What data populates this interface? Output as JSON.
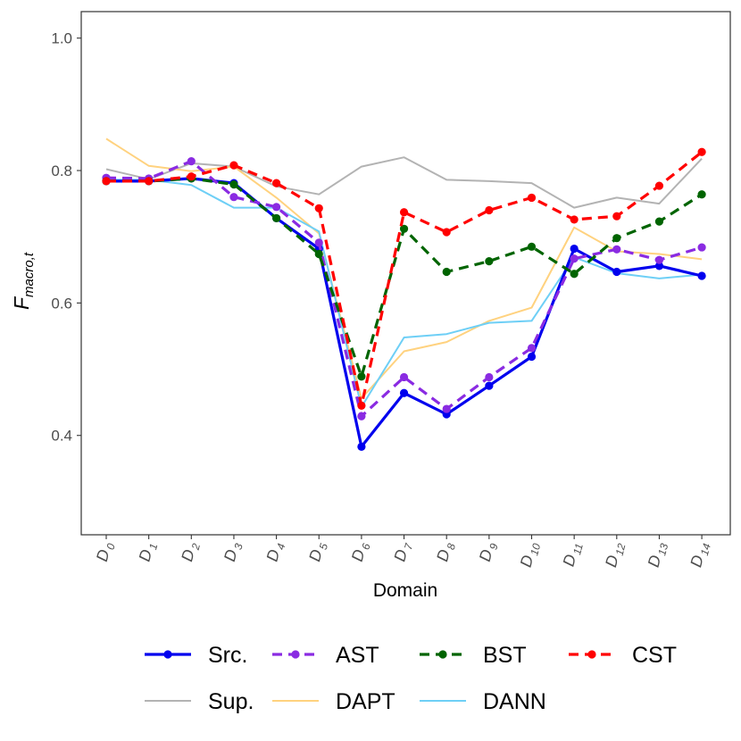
{
  "chart_data": {
    "type": "line",
    "xlabel": "Domain",
    "ylabel_main": "F",
    "ylabel_sub": "macro,t",
    "ylim": [
      0.25,
      1.04
    ],
    "yticks": [
      0.4,
      0.6,
      0.8,
      1.0
    ],
    "ytick_labels": [
      "0.4",
      "0.6",
      "0.8",
      "1.0"
    ],
    "categories": [
      {
        "main": "D",
        "sub": "0"
      },
      {
        "main": "D",
        "sub": "1"
      },
      {
        "main": "D",
        "sub": "2"
      },
      {
        "main": "D",
        "sub": "3"
      },
      {
        "main": "D",
        "sub": "4"
      },
      {
        "main": "D",
        "sub": "5"
      },
      {
        "main": "D",
        "sub": "6"
      },
      {
        "main": "D",
        "sub": "7"
      },
      {
        "main": "D",
        "sub": "8"
      },
      {
        "main": "D",
        "sub": "9"
      },
      {
        "main": "D",
        "sub": "10"
      },
      {
        "main": "D",
        "sub": "11"
      },
      {
        "main": "D",
        "sub": "12"
      },
      {
        "main": "D",
        "sub": "13"
      },
      {
        "main": "D",
        "sub": "14"
      }
    ],
    "series": [
      {
        "name": "Sup.",
        "color": "#b3b3b3",
        "dashed": false,
        "markers": false,
        "thick": false,
        "values": [
          0.802,
          0.787,
          0.811,
          0.806,
          0.776,
          0.764,
          0.806,
          0.82,
          0.786,
          0.784,
          0.781,
          0.744,
          0.759,
          0.75,
          0.818
        ]
      },
      {
        "name": "DAPT",
        "color": "#ffd27f",
        "dashed": false,
        "markers": false,
        "thick": false,
        "values": [
          0.848,
          0.807,
          0.799,
          0.806,
          0.759,
          0.705,
          0.456,
          0.527,
          0.541,
          0.573,
          0.593,
          0.714,
          0.678,
          0.674,
          0.666
        ]
      },
      {
        "name": "DANN",
        "color": "#6ecff6",
        "dashed": false,
        "markers": false,
        "thick": false,
        "values": [
          0.786,
          0.786,
          0.778,
          0.744,
          0.744,
          0.708,
          0.443,
          0.548,
          0.553,
          0.57,
          0.573,
          0.669,
          0.645,
          0.637,
          0.643
        ]
      },
      {
        "name": "Src.",
        "color": "#0000ee",
        "dashed": false,
        "markers": true,
        "thick": true,
        "values": [
          0.784,
          0.784,
          0.788,
          0.781,
          0.728,
          0.682,
          0.383,
          0.464,
          0.432,
          0.475,
          0.519,
          0.682,
          0.647,
          0.656,
          0.641
        ]
      },
      {
        "name": "AST",
        "color": "#8a2be2",
        "dashed": true,
        "markers": true,
        "thick": true,
        "values": [
          0.789,
          0.788,
          0.814,
          0.76,
          0.745,
          0.691,
          0.429,
          0.488,
          0.44,
          0.488,
          0.532,
          0.667,
          0.681,
          0.665,
          0.684
        ]
      },
      {
        "name": "BST",
        "color": "#006400",
        "dashed": true,
        "markers": true,
        "thick": true,
        "values": [
          0.784,
          0.784,
          0.788,
          0.779,
          0.728,
          0.674,
          0.489,
          0.712,
          0.647,
          0.663,
          0.685,
          0.644,
          0.698,
          0.723,
          0.764
        ]
      },
      {
        "name": "CST",
        "color": "#ff0000",
        "dashed": true,
        "markers": true,
        "thick": true,
        "values": [
          0.784,
          0.784,
          0.791,
          0.808,
          0.781,
          0.743,
          0.445,
          0.737,
          0.707,
          0.74,
          0.759,
          0.726,
          0.731,
          0.777,
          0.828
        ]
      }
    ],
    "legend": {
      "position": "bottom",
      "rows": [
        [
          "Src.",
          "AST",
          "BST",
          "CST"
        ],
        [
          "Sup.",
          "DAPT",
          "DANN"
        ]
      ]
    }
  }
}
